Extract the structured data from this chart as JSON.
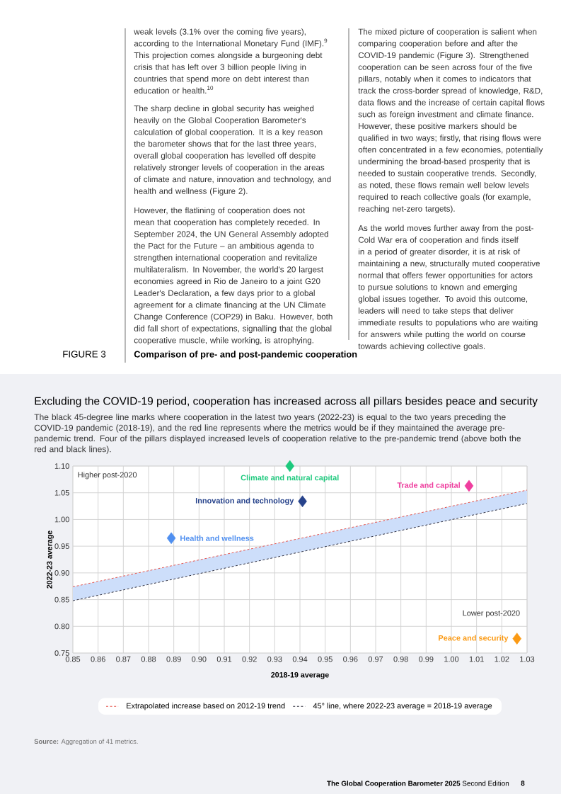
{
  "chart_data": {
    "type": "scatter",
    "title": "Excluding the COVID-19 period, cooperation has increased across all pillars besides peace and security",
    "subtitle": "The black 45-degree line marks where cooperation in the latest two years (2022-23) is equal to the two years preceding the COVID-19 pandemic (2018-19), and the red line represents where the metrics would be if they maintained the average pre-pandemic trend. Four of the pillars displayed increased levels of cooperation relative to the pre-pandemic trend (above both the red and black lines).",
    "xlabel": "2018-19 average",
    "ylabel": "2022-23 average",
    "xlim": [
      0.85,
      1.03
    ],
    "xticks": [
      0.85,
      0.86,
      0.87,
      0.88,
      0.89,
      {
        "value": 0.9,
        "label": "0.90"
      },
      0.91,
      0.92,
      0.93,
      0.94,
      0.95,
      0.96,
      0.97,
      0.98,
      0.99,
      {
        "value": 1.0,
        "label": "1.00"
      },
      1.01,
      1.02,
      1.03
    ],
    "ylim": [
      0.75,
      1.1
    ],
    "yticks": [
      0.75,
      {
        "value": 0.8,
        "label": "0.80"
      },
      0.85,
      {
        "value": 0.9,
        "label": "0.90"
      },
      0.95,
      {
        "value": 1.0,
        "label": "1.00"
      },
      1.05,
      {
        "value": 1.1,
        "label": "1.10"
      }
    ],
    "grid": true,
    "legend": "bottom",
    "series": [
      {
        "type": "line",
        "name": "Extrapolated increase based on 2012-19 trend",
        "color": "#e5483f",
        "line_style": "dashed",
        "x": [
          0.85,
          1.03
        ],
        "values": [
          0.874,
          1.055
        ]
      },
      {
        "type": "line",
        "name": "45° line, where 2022-23 average = 2018-19 average",
        "color": "#222233",
        "line_style": "dashed",
        "x": [
          0.85,
          1.03
        ],
        "values": [
          0.848,
          1.03
        ],
        "lower": [
          0.848,
          1.03
        ],
        "upper": [
          0.874,
          1.055
        ]
      },
      {
        "type": "scatter",
        "name": "Climate and natural capital",
        "color": "#1dc97d",
        "marker": "diamond",
        "x": [
          0.936
        ],
        "values": [
          1.1
        ]
      },
      {
        "type": "scatter",
        "name": "Innovation and technology",
        "color": "#26428b",
        "marker": "diamond",
        "x": [
          0.941
        ],
        "values": [
          1.034
        ]
      },
      {
        "type": "scatter",
        "name": "Health and wellness",
        "color": "#4f8ff0",
        "marker": "diamond",
        "x": [
          0.889
        ],
        "values": [
          0.965
        ]
      },
      {
        "type": "scatter",
        "name": "Trade and capital",
        "color": "#ef3f9f",
        "marker": "diamond",
        "x": [
          1.007
        ],
        "values": [
          1.063
        ]
      },
      {
        "type": "scatter",
        "name": "Peace and security",
        "color": "#fb9a14",
        "marker": "diamond",
        "x": [
          1.026
        ],
        "values": [
          0.777
        ]
      }
    ],
    "annotations": [
      "weak levels (3.1% over the coming five years), according to the International Monetary Fund (IMF).$^{9}$ This projection comes alongside a burgeoning debt crisis that has left over 3 billion people living in countries that spend more on debt interest than education or health.$^{10}$",
      "The sharp decline in global security has weighed heavily on the Global Cooperation Barometer's calculation of global cooperation. It is a key reason the barometer shows that for the last three years, overall global cooperation has levelled off despite relatively stronger levels of cooperation in the areas of climate and nature, innovation and technology, and health and wellness (Figure 2).",
      "However, the flatlining of cooperation does not mean that cooperation has completely receded. In September 2024, the UN General Assembly adopted the Pact for the Future – an ambitious agenda to strengthen international cooperation and revitalize multilateralism. In November, the world's 20 largest economies agreed in Rio de Janeiro to a joint G20 Leader's Declaration, a few days prior to a global agreement for a climate financing at the UN Climate Change Conference (COP29) in Baku. However, both did fall short of expectations, signalling that the global cooperative muscle, while working, is atrophying.",
      "The mixed picture of cooperation is salient when comparing cooperation before and after the COVID-19 pandemic (Figure 3). Strengthened cooperation can be seen across four of the five pillars, notably when it comes to indicators that track the cross-border spread of knowledge, R&D, data flows and the increase of certain capital flows such as foreign investment and climate finance. However, these positive markers should be qualified in two ways; firstly, that rising flows were often concentrated in a few economies, potentially undermining the broad-based prosperity that is needed to sustain cooperative trends. Secondly, as noted, these flows remain well below levels required to reach collective goals (for example, reaching net-zero targets).",
      "As the world moves further away from the post-Cold War era of cooperation and finds itself in a period of greater disorder, it is at risk of maintaining a new, structurally muted cooperative normal that offers fewer opportunities for actors to pursue solutions to known and emerging global issues together. To avoid this outcome, leaders will need to take steps that deliver immediate results to populations who are waiting for answers while putting the world on course towards achieving collective goals.",
      "FIGURE 3",
      "Comparison of pre- and post-pandemic cooperation",
      "Higher post-2020",
      "Lower post-2020",
      "**Source:** Aggregation of 41 metrics.",
      "**The Global Cooperation Barometer 2025** Second Edition",
      "8"
    ]
  }
}
